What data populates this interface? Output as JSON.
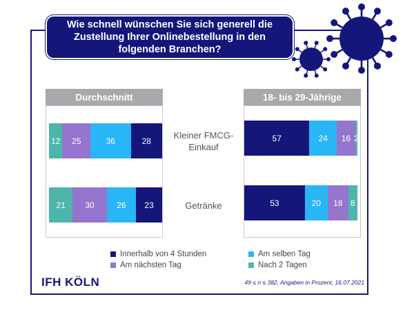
{
  "header": {
    "title": "Wie schnell wünschen Sie sich generell die Zustellung Ihrer Onlinebestellung in den folgenden Branchen?"
  },
  "panels": [
    {
      "label": "Durchschnitt"
    },
    {
      "label": "18- bis 29-Jährige"
    }
  ],
  "categories": [
    "Kleiner FMCG-Einkauf",
    "Getränke"
  ],
  "colors": {
    "accent": "#14167a",
    "s1": "#14167a",
    "s2": "#29b6f6",
    "s3": "#9575cd",
    "s4": "#4db6ac",
    "panel_header": "#a7a9ac"
  },
  "chart_data": [
    {
      "type": "bar",
      "title": "Durchschnitt",
      "stacked": true,
      "orientation": "horizontal",
      "categories": [
        "Kleiner FMCG-Einkauf",
        "Getränke"
      ],
      "series": [
        {
          "name": "Nach 2 Tagen",
          "values": [
            12,
            21
          ]
        },
        {
          "name": "Am nächsten Tag",
          "values": [
            25,
            30
          ]
        },
        {
          "name": "Am selben Tag",
          "values": [
            36,
            26
          ]
        },
        {
          "name": "Innerhalb von 4 Stunden",
          "values": [
            28,
            23
          ]
        }
      ]
    },
    {
      "type": "bar",
      "title": "18- bis 29-Jährige",
      "stacked": true,
      "orientation": "horizontal",
      "categories": [
        "Kleiner FMCG-Einkauf",
        "Getränke"
      ],
      "series": [
        {
          "name": "Innerhalb von 4 Stunden",
          "values": [
            57,
            53
          ]
        },
        {
          "name": "Am selben Tag",
          "values": [
            24,
            20
          ]
        },
        {
          "name": "Am nächsten Tag",
          "values": [
            16,
            18
          ]
        },
        {
          "name": "Nach 2 Tagen",
          "values": [
            2,
            8
          ]
        }
      ]
    }
  ],
  "legend": [
    {
      "label": "Innerhalb von 4 Stunden",
      "color": "#14167a"
    },
    {
      "label": "Am selben Tag",
      "color": "#29b6f6"
    },
    {
      "label": "Am nächsten Tag",
      "color": "#9575cd"
    },
    {
      "label": "Nach 2 Tagen",
      "color": "#4db6ac"
    }
  ],
  "footer": {
    "logo": "IFH KÖLN",
    "note": "49 ≤ n ≤ 382, Angaben in Prozent, 16.07.2021"
  }
}
